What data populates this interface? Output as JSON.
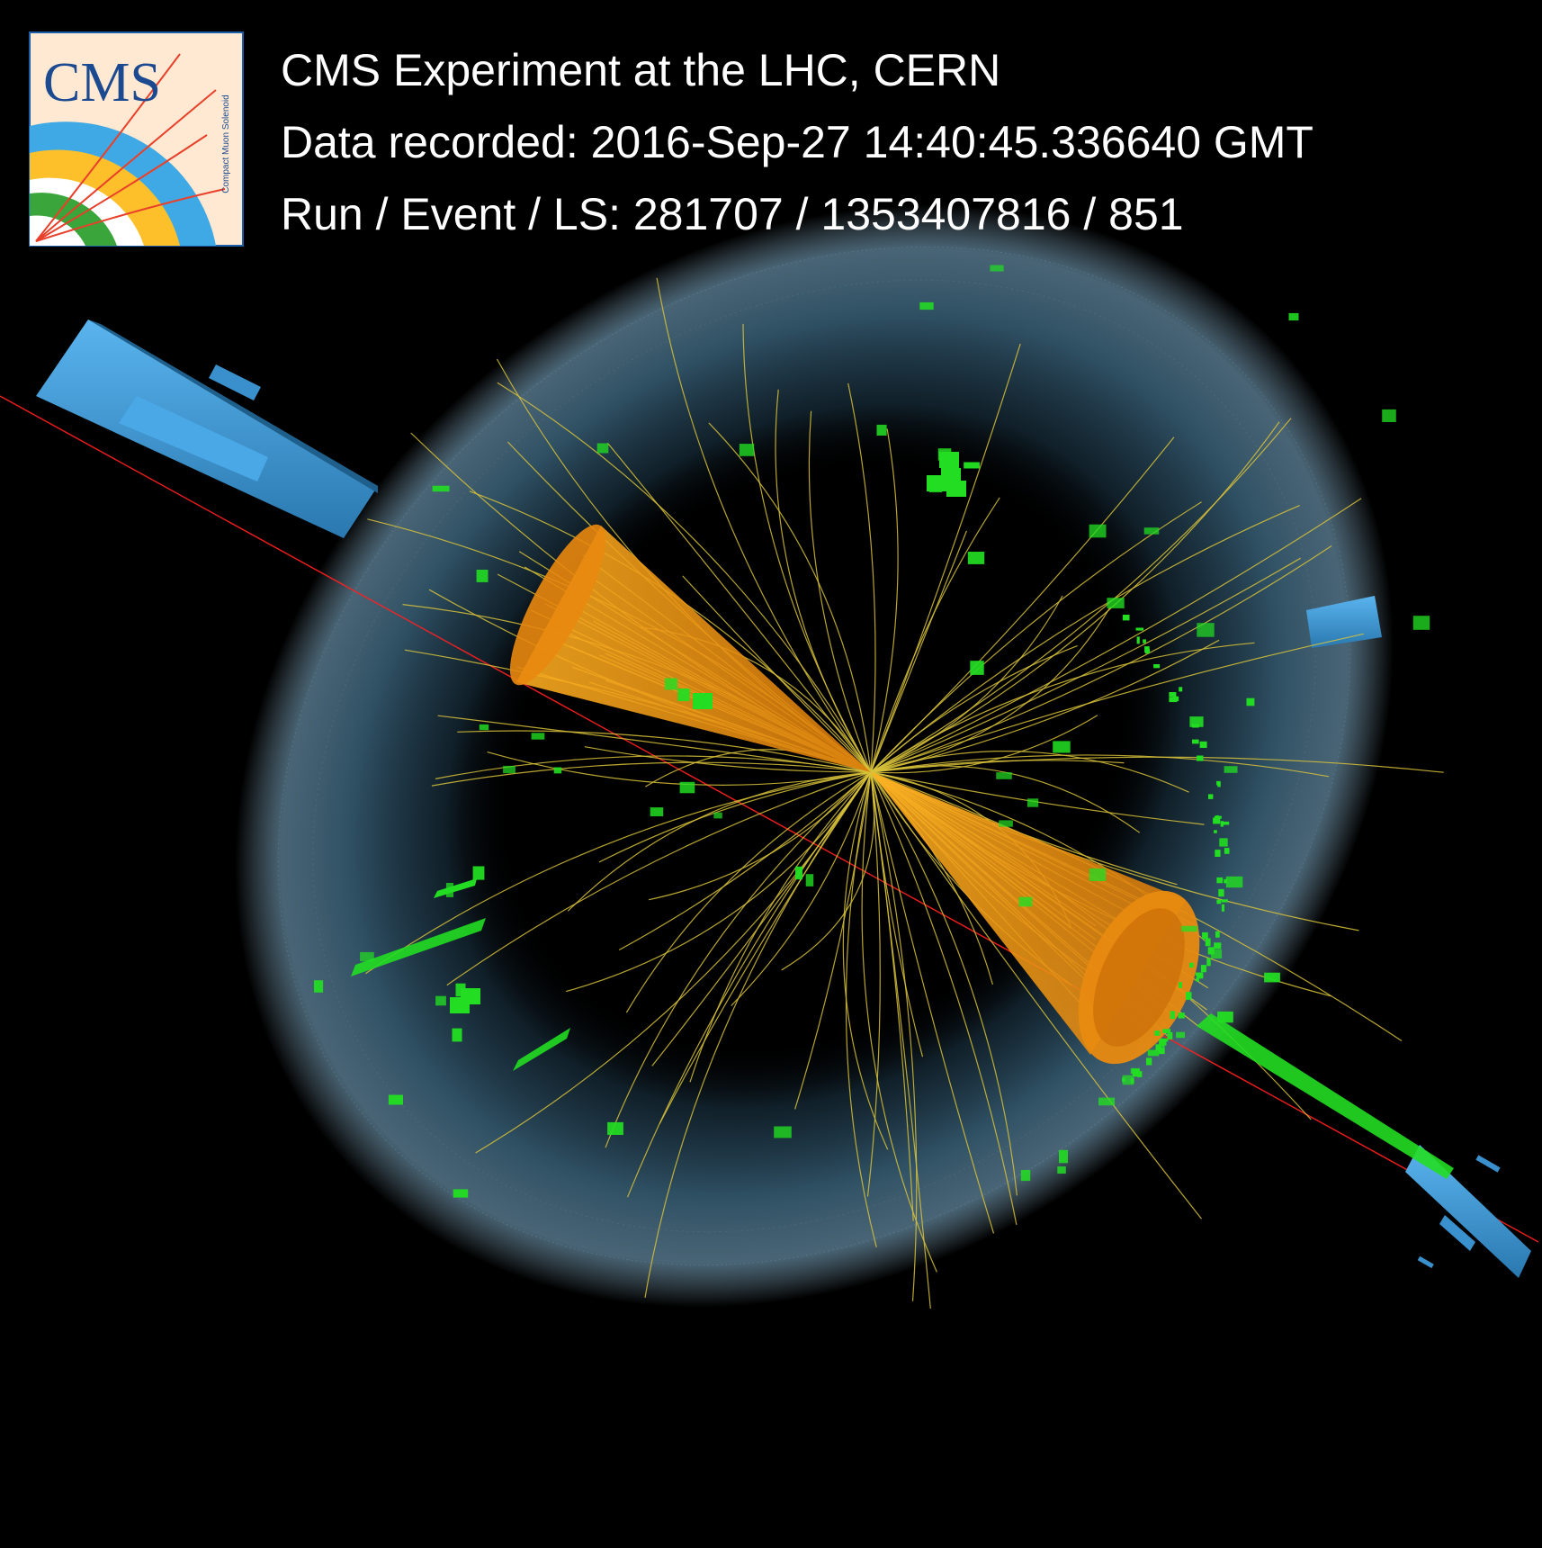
{
  "header": {
    "line1": "CMS Experiment at the LHC, CERN",
    "line2": "Data recorded: 2016-Sep-27 14:40:45.336640 GMT",
    "line3": "Run / Event / LS: 281707 / 1353407816 / 851"
  },
  "logo": {
    "text": "CMS",
    "subtext": "Compact Muon Solenoid"
  },
  "colors": {
    "background": "#000000",
    "jet_cone": "#f0900c",
    "tracks": "#d8c23a",
    "calo_deposits": "#22dd22",
    "muon_chambers": "#3a9ad8",
    "muon_track": "#ff2020",
    "calorimeter_shell": "#7fa8c0"
  }
}
